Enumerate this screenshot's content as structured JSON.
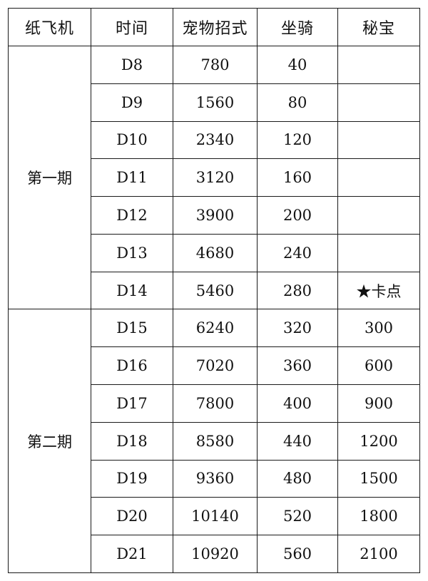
{
  "headers": [
    "纸飞机",
    "时间",
    "宠物招式",
    "坐骑",
    "秘宝"
  ],
  "groups": [
    {
      "label": "第一期",
      "rows": [
        [
          "D8",
          "780",
          "40",
          ""
        ],
        [
          "D9",
          "1560",
          "80",
          ""
        ],
        [
          "D10",
          "2340",
          "120",
          ""
        ],
        [
          "D11",
          "3120",
          "160",
          ""
        ],
        [
          "D12",
          "3900",
          "200",
          ""
        ],
        [
          "D13",
          "4680",
          "240",
          ""
        ],
        [
          "D14",
          "5460",
          "280",
          "★卡点"
        ]
      ]
    },
    {
      "label": "第二期",
      "rows": [
        [
          "D15",
          "6240",
          "320",
          "300"
        ],
        [
          "D16",
          "7020",
          "360",
          "600"
        ],
        [
          "D17",
          "7800",
          "400",
          "900"
        ],
        [
          "D18",
          "8580",
          "440",
          "1200"
        ],
        [
          "D19",
          "9360",
          "480",
          "1500"
        ],
        [
          "D20",
          "10140",
          "520",
          "1800"
        ],
        [
          "D21",
          "10920",
          "560",
          "2100"
        ]
      ]
    }
  ]
}
